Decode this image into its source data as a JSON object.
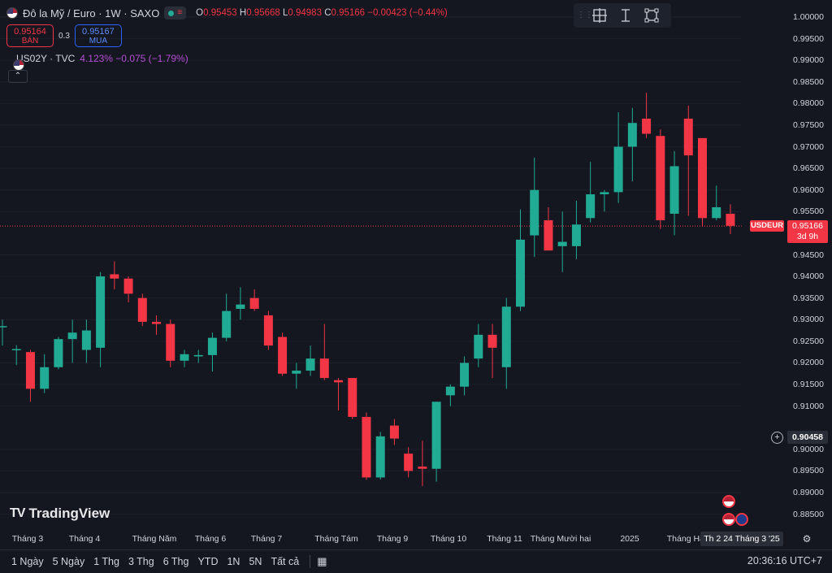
{
  "header": {
    "symbol_title": "Đô la Mỹ / Euro · 1W · SAXO",
    "ohlc": [
      {
        "k": "O",
        "v": "0.95453"
      },
      {
        "k": "H",
        "v": "0.95668"
      },
      {
        "k": "L",
        "v": "0.94983"
      },
      {
        "k": "C",
        "v": "0.95166"
      }
    ],
    "change": "−0.00423 (−0.44%)"
  },
  "trade": {
    "sell_price": "0.95164",
    "sell_label": "BÁN",
    "spread": "0.3",
    "buy_price": "0.95167",
    "buy_label": "MUA"
  },
  "compare": {
    "name": "US02Y · TVC",
    "values": "4.123%  −0.075 (−1.79%)"
  },
  "colors": {
    "up": "#22ab94",
    "down": "#f23645",
    "compare": "#b44cd4",
    "background": "#141720"
  },
  "price_axis": {
    "labels": [
      "1.00000",
      "0.99500",
      "0.99000",
      "0.98500",
      "0.98000",
      "0.97500",
      "0.97000",
      "0.96500",
      "0.96000",
      "0.95500",
      "0.94500",
      "0.94000",
      "0.93500",
      "0.93000",
      "0.92500",
      "0.92000",
      "0.91500",
      "0.91000",
      "0.90000",
      "0.89500",
      "0.89000",
      "0.88500"
    ],
    "symbol_badge": "USDEUR",
    "last_price": "0.95166",
    "countdown": "3d 9h",
    "crosshair_price": "0.90458"
  },
  "time_axis": {
    "labels": [
      "Tháng 3",
      "Tháng 4",
      "Tháng Năm",
      "Tháng 6",
      "Tháng 7",
      "Tháng Tám",
      "Tháng 9",
      "Tháng 10",
      "Tháng 11",
      "Tháng Mười hai",
      "2025",
      "Tháng Hai"
    ],
    "crosshair_time": "Th 2 24 Tháng 3 '25"
  },
  "chart_data": {
    "type": "candlestick",
    "interval": "1W",
    "y_range": [
      0.8838,
      1.0015
    ],
    "candles": [
      {
        "o": 0.9285,
        "h": 0.93,
        "l": 0.924,
        "c": 0.9285
      },
      {
        "o": 0.9232,
        "h": 0.9241,
        "l": 0.9195,
        "c": 0.9232
      },
      {
        "o": 0.9225,
        "h": 0.923,
        "l": 0.911,
        "c": 0.914
      },
      {
        "o": 0.914,
        "h": 0.922,
        "l": 0.913,
        "c": 0.919
      },
      {
        "o": 0.919,
        "h": 0.926,
        "l": 0.9185,
        "c": 0.9255
      },
      {
        "o": 0.9255,
        "h": 0.93,
        "l": 0.92,
        "c": 0.927
      },
      {
        "o": 0.923,
        "h": 0.93,
        "l": 0.92,
        "c": 0.9275
      },
      {
        "o": 0.9235,
        "h": 0.941,
        "l": 0.919,
        "c": 0.94
      },
      {
        "o": 0.9405,
        "h": 0.9435,
        "l": 0.937,
        "c": 0.9395
      },
      {
        "o": 0.9395,
        "h": 0.94,
        "l": 0.934,
        "c": 0.936
      },
      {
        "o": 0.935,
        "h": 0.936,
        "l": 0.9285,
        "c": 0.9295
      },
      {
        "o": 0.9295,
        "h": 0.931,
        "l": 0.9265,
        "c": 0.929
      },
      {
        "o": 0.929,
        "h": 0.93,
        "l": 0.919,
        "c": 0.9205
      },
      {
        "o": 0.9205,
        "h": 0.923,
        "l": 0.919,
        "c": 0.922
      },
      {
        "o": 0.9215,
        "h": 0.923,
        "l": 0.92,
        "c": 0.9218
      },
      {
        "o": 0.9218,
        "h": 0.927,
        "l": 0.918,
        "c": 0.9258
      },
      {
        "o": 0.9258,
        "h": 0.936,
        "l": 0.925,
        "c": 0.932
      },
      {
        "o": 0.9325,
        "h": 0.9375,
        "l": 0.93,
        "c": 0.9335
      },
      {
        "o": 0.935,
        "h": 0.937,
        "l": 0.932,
        "c": 0.9325
      },
      {
        "o": 0.931,
        "h": 0.932,
        "l": 0.923,
        "c": 0.924
      },
      {
        "o": 0.926,
        "h": 0.927,
        "l": 0.917,
        "c": 0.9175
      },
      {
        "o": 0.9175,
        "h": 0.92,
        "l": 0.914,
        "c": 0.9182
      },
      {
        "o": 0.9182,
        "h": 0.924,
        "l": 0.917,
        "c": 0.921
      },
      {
        "o": 0.921,
        "h": 0.929,
        "l": 0.916,
        "c": 0.9165
      },
      {
        "o": 0.916,
        "h": 0.9165,
        "l": 0.909,
        "c": 0.9155
      },
      {
        "o": 0.9165,
        "h": 0.9165,
        "l": 0.907,
        "c": 0.9075
      },
      {
        "o": 0.9075,
        "h": 0.9085,
        "l": 0.893,
        "c": 0.8935
      },
      {
        "o": 0.8935,
        "h": 0.904,
        "l": 0.893,
        "c": 0.903
      },
      {
        "o": 0.9055,
        "h": 0.907,
        "l": 0.901,
        "c": 0.9025
      },
      {
        "o": 0.899,
        "h": 0.9005,
        "l": 0.8935,
        "c": 0.895
      },
      {
        "o": 0.896,
        "h": 0.902,
        "l": 0.8915,
        "c": 0.8955
      },
      {
        "o": 0.8955,
        "h": 0.911,
        "l": 0.8925,
        "c": 0.911
      },
      {
        "o": 0.9125,
        "h": 0.915,
        "l": 0.91,
        "c": 0.9145
      },
      {
        "o": 0.9145,
        "h": 0.9215,
        "l": 0.9125,
        "c": 0.92
      },
      {
        "o": 0.921,
        "h": 0.929,
        "l": 0.919,
        "c": 0.9265
      },
      {
        "o": 0.9265,
        "h": 0.929,
        "l": 0.9165,
        "c": 0.9235
      },
      {
        "o": 0.919,
        "h": 0.935,
        "l": 0.914,
        "c": 0.933
      },
      {
        "o": 0.933,
        "h": 0.9555,
        "l": 0.932,
        "c": 0.9485
      },
      {
        "o": 0.9495,
        "h": 0.9675,
        "l": 0.9445,
        "c": 0.96
      },
      {
        "o": 0.953,
        "h": 0.956,
        "l": 0.946,
        "c": 0.946
      },
      {
        "o": 0.947,
        "h": 0.955,
        "l": 0.941,
        "c": 0.948
      },
      {
        "o": 0.947,
        "h": 0.9575,
        "l": 0.944,
        "c": 0.952
      },
      {
        "o": 0.9535,
        "h": 0.9665,
        "l": 0.9525,
        "c": 0.959
      },
      {
        "o": 0.959,
        "h": 0.96,
        "l": 0.955,
        "c": 0.9595
      },
      {
        "o": 0.9595,
        "h": 0.978,
        "l": 0.957,
        "c": 0.97
      },
      {
        "o": 0.97,
        "h": 0.979,
        "l": 0.962,
        "c": 0.9755
      },
      {
        "o": 0.9765,
        "h": 0.9825,
        "l": 0.972,
        "c": 0.973
      },
      {
        "o": 0.9725,
        "h": 0.974,
        "l": 0.951,
        "c": 0.953
      },
      {
        "o": 0.9545,
        "h": 0.969,
        "l": 0.9495,
        "c": 0.9655
      },
      {
        "o": 0.9765,
        "h": 0.9795,
        "l": 0.954,
        "c": 0.968
      },
      {
        "o": 0.972,
        "h": 0.972,
        "l": 0.9515,
        "c": 0.9535
      },
      {
        "o": 0.9535,
        "h": 0.961,
        "l": 0.953,
        "c": 0.956
      },
      {
        "o": 0.9545,
        "h": 0.9567,
        "l": 0.9498,
        "c": 0.9517
      }
    ]
  },
  "toolbar": {
    "tools": [
      "crosshair-icon",
      "measure-icon",
      "zoom-icon"
    ]
  },
  "branding": {
    "logo_text": "TradingView"
  },
  "bottom": {
    "ranges": [
      "1 Ngày",
      "5 Ngày",
      "1 Thg",
      "3 Thg",
      "6 Thg",
      "YTD",
      "1N",
      "5N",
      "Tất cả"
    ],
    "clock": "20:36:16 UTC+7"
  }
}
